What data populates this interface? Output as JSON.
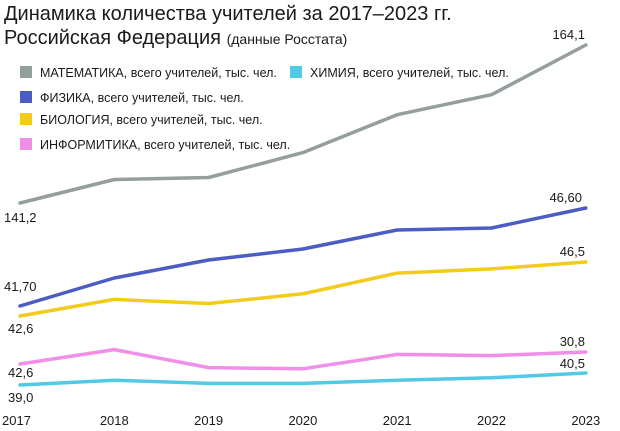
{
  "chart_data": {
    "type": "line",
    "title": "Динамика количества учителей за 2017–2023 гг.",
    "subtitle": "Российская Федерация",
    "subtitle_note": "(данные Росстата)",
    "x": [
      "2017",
      "2018",
      "2019",
      "2020",
      "2021",
      "2022",
      "2023"
    ],
    "xlabel": "",
    "ylabel": "",
    "grid": false,
    "legend_position": "top-left",
    "series": [
      {
        "name": "МАТЕМАТИКА, всего учителей, тыс. чел.",
        "color": "#959f9a",
        "values": [
          141.2,
          144.6,
          144.9,
          148.5,
          154.0,
          156.9,
          164.1
        ],
        "labels": [
          {
            "index": 0,
            "text": "141,2"
          },
          {
            "index": 6,
            "text": "164,1"
          }
        ]
      },
      {
        "name": "ФИЗИКА, всего учителей, тыс. чел.",
        "color": "#4b5cc3",
        "values": [
          41.7,
          43.1,
          44.0,
          44.55,
          45.5,
          45.6,
          46.6
        ],
        "labels": [
          {
            "index": 0,
            "text": "41,70"
          },
          {
            "index": 6,
            "text": "46,60"
          }
        ]
      },
      {
        "name": "БИОЛОГИЯ, всего учителей, тыс. чел.",
        "color": "#f2cb1d",
        "values": [
          42.6,
          43.8,
          43.5,
          44.2,
          45.7,
          46.0,
          46.5
        ],
        "labels": [
          {
            "index": 0,
            "text": "42,6"
          },
          {
            "index": 6,
            "text": "46,5"
          }
        ]
      },
      {
        "name": "ИНФОРМИТИКА, всего учителей, тыс. чел.",
        "color": "#ef8fe8",
        "values": [
          29.8,
          31.0,
          29.5,
          29.4,
          30.6,
          30.5,
          30.8
        ],
        "labels": [
          {
            "index": 6,
            "text": "30,8"
          }
        ]
      },
      {
        "name": "ХИМИЯ, всего учителей, тыс. чел.",
        "color": "#52c9e5",
        "values": [
          39.0,
          39.6,
          39.2,
          39.2,
          39.6,
          39.9,
          40.5
        ],
        "labels": [
          {
            "index": 0,
            "text": "39,0"
          },
          {
            "index": 6,
            "text": "40,5"
          }
        ]
      }
    ],
    "extra_labels": [
      {
        "text": "42,6"
      }
    ]
  }
}
